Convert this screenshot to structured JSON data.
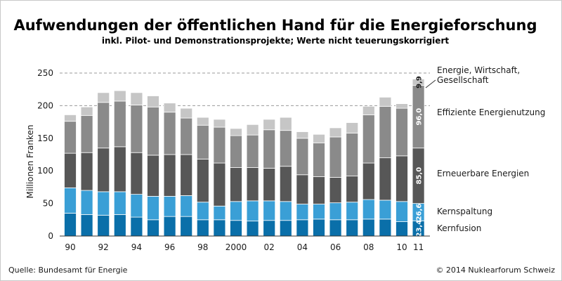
{
  "chart_data": {
    "type": "bar",
    "stacked": true,
    "title": "Aufwendungen der öffentlichen Hand für die Energieforschung",
    "subtitle": "inkl. Pilot- und Demonstrationsprojekte; Werte nicht teuerungskorrigiert",
    "ylabel": "Millionen Franken",
    "ylim": [
      0,
      250
    ],
    "yticks": [
      0,
      50,
      100,
      150,
      200,
      250
    ],
    "categories": [
      "1990",
      "1991",
      "1992",
      "1993",
      "1994",
      "1995",
      "1996",
      "1997",
      "1998",
      "1999",
      "2000",
      "2001",
      "2002",
      "2003",
      "2004",
      "2005",
      "2006",
      "2007",
      "2008",
      "2009",
      "2010",
      "2011"
    ],
    "xtick_labels": [
      "90",
      "",
      "92",
      "",
      "94",
      "",
      "96",
      "",
      "98",
      "",
      "2000",
      "",
      "02",
      "",
      "04",
      "",
      "06",
      "",
      "08",
      "",
      "10",
      "11"
    ],
    "series": [
      {
        "name": "Kernfusion",
        "color": "#0a6fa9",
        "values": [
          35,
          33,
          32,
          33,
          29,
          25,
          30,
          30,
          25,
          25,
          24,
          23,
          24,
          24,
          25,
          26,
          25,
          25,
          26,
          26,
          22,
          23.4
        ]
      },
      {
        "name": "Kernspaltung",
        "color": "#3a9fd6",
        "values": [
          39,
          37,
          36,
          35,
          35,
          36,
          31,
          32,
          27,
          21,
          29,
          31,
          30,
          29,
          24,
          23,
          26,
          27,
          30,
          29,
          31,
          26.6
        ]
      },
      {
        "name": "Erneuerbare Energien",
        "color": "#575757",
        "values": [
          53,
          58,
          67,
          69,
          64,
          63,
          64,
          63,
          66,
          66,
          52,
          51,
          50,
          54,
          45,
          42,
          39,
          40,
          56,
          65,
          70,
          85.0
        ]
      },
      {
        "name": "Effiziente Energienutzung",
        "color": "#8a8a8a",
        "values": [
          49,
          57,
          70,
          70,
          73,
          74,
          65,
          56,
          52,
          55,
          49,
          50,
          59,
          55,
          56,
          52,
          62,
          66,
          74,
          79,
          73,
          96.0
        ]
      },
      {
        "name": "Energie, Wirtschaft, Gesellschaft",
        "color": "#c6c6c6",
        "values": [
          10,
          13,
          15,
          16,
          19,
          17,
          14,
          15,
          12,
          12,
          11,
          16,
          16,
          20,
          10,
          13,
          14,
          16,
          13,
          14,
          7,
          9.9
        ]
      }
    ],
    "value_labels_last": [
      "23,4",
      "26,6",
      "85,0",
      "96,0",
      "9,9"
    ],
    "grid": "dashed horizontal lines at 200 and 250",
    "legend": "right, aligned with last bar segments"
  },
  "legend_labels": {
    "l1": "Energie, Wirtschaft,",
    "l2": "Gesellschaft",
    "l3": "Effiziente Energienutzung",
    "l4": "Erneuerbare Energien",
    "l5": "Kernspaltung",
    "l6": "Kernfusion"
  },
  "footer": {
    "source": "Quelle: Bundesamt für Energie",
    "copyright": "© 2014 Nuklearforum Schweiz"
  }
}
